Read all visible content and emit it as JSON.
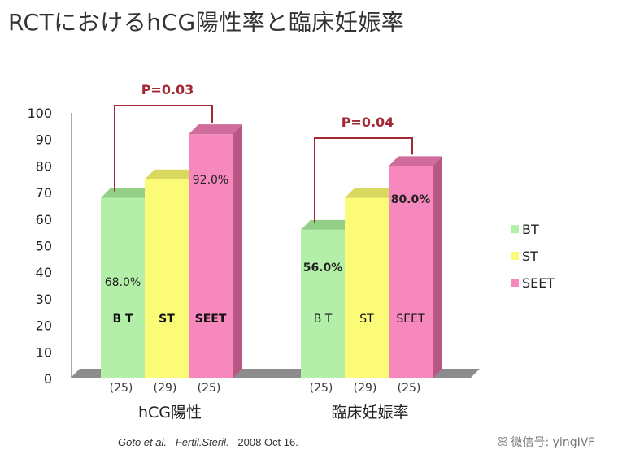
{
  "title": "RCTにおけるhCG陽性率と臨床妊娠率",
  "chart_data": {
    "type": "bar",
    "title": "RCTにおけるhCG陽性率と臨床妊娠率",
    "ylim": [
      0,
      100
    ],
    "yticks": [
      0,
      10,
      20,
      30,
      40,
      50,
      60,
      70,
      80,
      90,
      100
    ],
    "grid": false,
    "legend_position": "right",
    "series_names": [
      "BT",
      "ST",
      "SEET"
    ],
    "series_colors": [
      "#b3efa9",
      "#fbfb78",
      "#f788bd"
    ],
    "groups": [
      {
        "label": "hCG陽性",
        "values": [
          68,
          75,
          92
        ],
        "counts": [
          "(25)",
          "(29)",
          "(25)"
        ],
        "inner_labels": [
          "B T",
          "ST",
          "SEET"
        ],
        "value_labels": [
          "68.0%",
          "",
          "92.0%"
        ],
        "p_value": "P=0.03"
      },
      {
        "label": "臨床妊娠率",
        "values": [
          56,
          68,
          80
        ],
        "counts": [
          "(25)",
          "(29)",
          "(25)"
        ],
        "inner_labels": [
          "B T",
          "ST",
          "SEET"
        ],
        "value_labels": [
          "56.0%",
          "",
          "80.0%"
        ],
        "p_value": "P=0.04"
      }
    ]
  },
  "citation": {
    "authors": "Goto et al.",
    "journal": "Fertil.Steril.",
    "date": "2008 Oct 16."
  },
  "watermark": {
    "icon": "wechat-icon",
    "text": "微信号: yingIVF"
  }
}
